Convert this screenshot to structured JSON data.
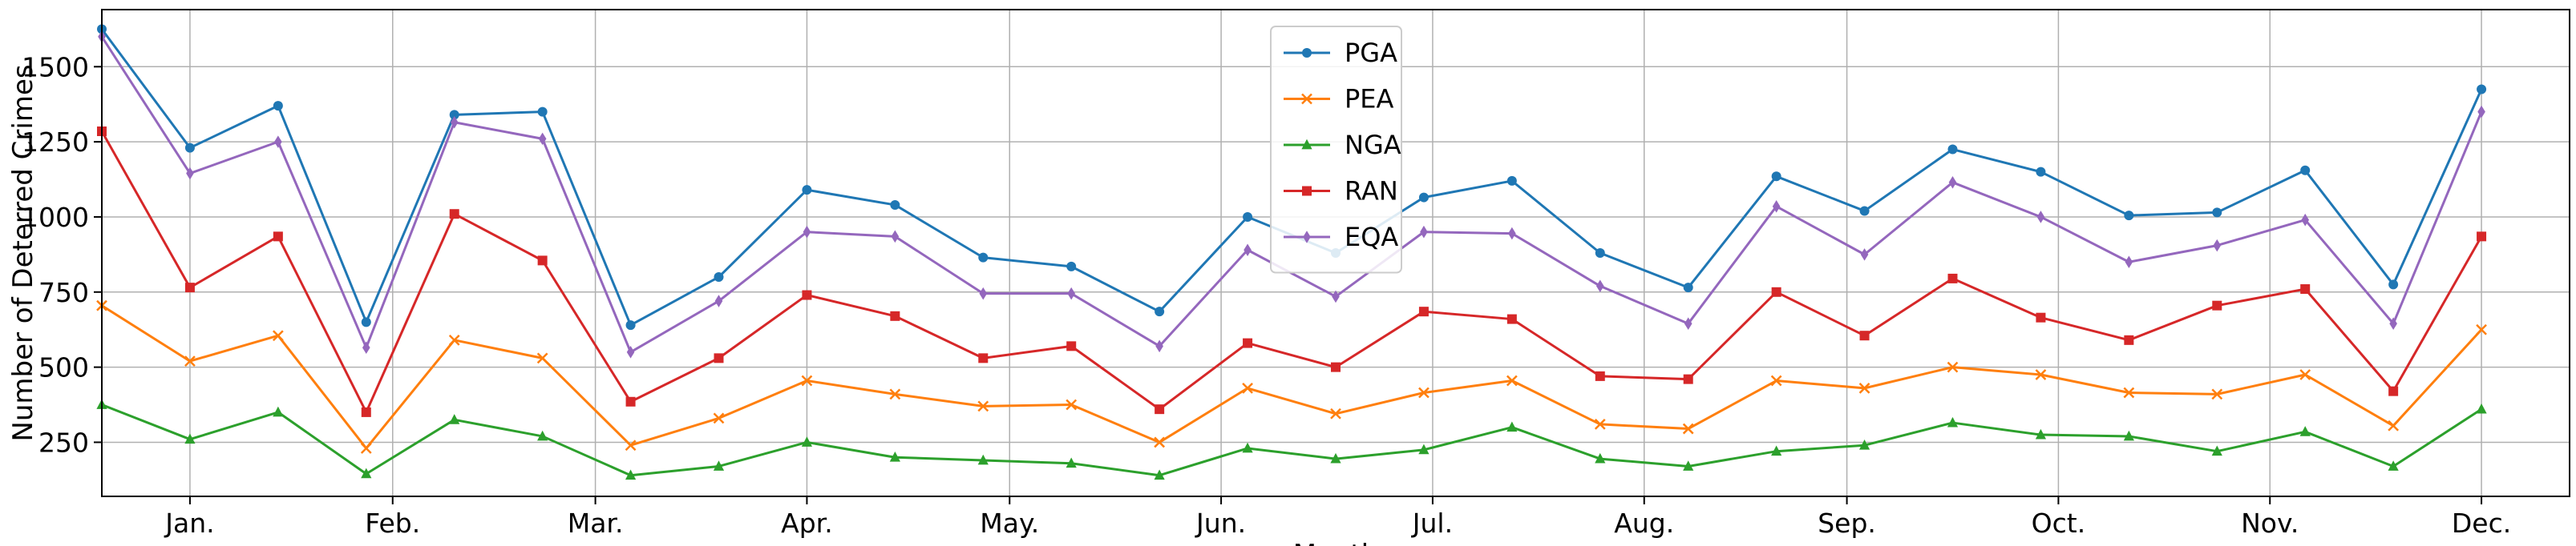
{
  "chart_data": {
    "type": "line",
    "title": "",
    "xlabel": "Month",
    "ylabel": "Number of Deterred Crimes",
    "xlim": [
      0,
      28
    ],
    "ylim": [
      70,
      1690
    ],
    "grid": true,
    "legend_position": "top-center",
    "x": [
      0,
      1,
      2,
      3,
      4,
      5,
      6,
      7,
      8,
      9,
      10,
      11,
      12,
      13,
      14,
      15,
      16,
      17,
      18,
      19,
      20,
      21,
      22,
      23,
      24,
      25,
      26,
      27
    ],
    "x_ticks": [
      {
        "pos": 1.0,
        "label": "Jan."
      },
      {
        "pos": 3.3,
        "label": "Feb."
      },
      {
        "pos": 5.6,
        "label": "Mar."
      },
      {
        "pos": 8.0,
        "label": "Apr."
      },
      {
        "pos": 10.3,
        "label": "May."
      },
      {
        "pos": 12.7,
        "label": "Jun."
      },
      {
        "pos": 15.1,
        "label": "Jul."
      },
      {
        "pos": 17.5,
        "label": "Aug."
      },
      {
        "pos": 19.8,
        "label": "Sep."
      },
      {
        "pos": 22.2,
        "label": "Oct."
      },
      {
        "pos": 24.6,
        "label": "Nov."
      },
      {
        "pos": 27.0,
        "label": "Dec."
      }
    ],
    "y_ticks": [
      250,
      500,
      750,
      1000,
      1250,
      1500
    ],
    "y_tick_labels": [
      "250",
      "500",
      "750",
      "1000",
      "1250",
      "1500"
    ],
    "series": [
      {
        "name": "PGA",
        "color": "#1f77b4",
        "marker": "circle",
        "values": [
          1625,
          1230,
          1370,
          650,
          1340,
          1350,
          640,
          800,
          1090,
          1040,
          865,
          835,
          685,
          1000,
          880,
          1065,
          1120,
          880,
          765,
          1135,
          1020,
          1225,
          1150,
          1005,
          1015,
          1155,
          775,
          1425
        ]
      },
      {
        "name": "PEA",
        "color": "#ff7f0e",
        "marker": "x",
        "values": [
          705,
          520,
          605,
          230,
          590,
          530,
          240,
          330,
          455,
          410,
          370,
          375,
          250,
          430,
          345,
          415,
          455,
          310,
          295,
          455,
          430,
          500,
          475,
          415,
          410,
          475,
          305,
          625
        ]
      },
      {
        "name": "NGA",
        "color": "#2ca02c",
        "marker": "triangle",
        "values": [
          375,
          260,
          350,
          145,
          325,
          270,
          140,
          170,
          250,
          200,
          190,
          180,
          140,
          230,
          195,
          225,
          300,
          195,
          170,
          220,
          240,
          315,
          275,
          270,
          220,
          285,
          170,
          360
        ]
      },
      {
        "name": "RAN",
        "color": "#d62728",
        "marker": "square",
        "values": [
          1285,
          765,
          935,
          350,
          1010,
          855,
          385,
          530,
          740,
          670,
          530,
          570,
          360,
          580,
          500,
          685,
          660,
          470,
          460,
          750,
          605,
          795,
          665,
          590,
          705,
          760,
          420,
          935
        ]
      },
      {
        "name": "EQA",
        "color": "#9467bd",
        "marker": "diamond",
        "values": [
          1600,
          1145,
          1250,
          565,
          1315,
          1260,
          550,
          720,
          950,
          935,
          745,
          745,
          570,
          890,
          735,
          950,
          945,
          770,
          645,
          1035,
          875,
          1115,
          1000,
          850,
          905,
          990,
          645,
          1350
        ]
      }
    ]
  }
}
